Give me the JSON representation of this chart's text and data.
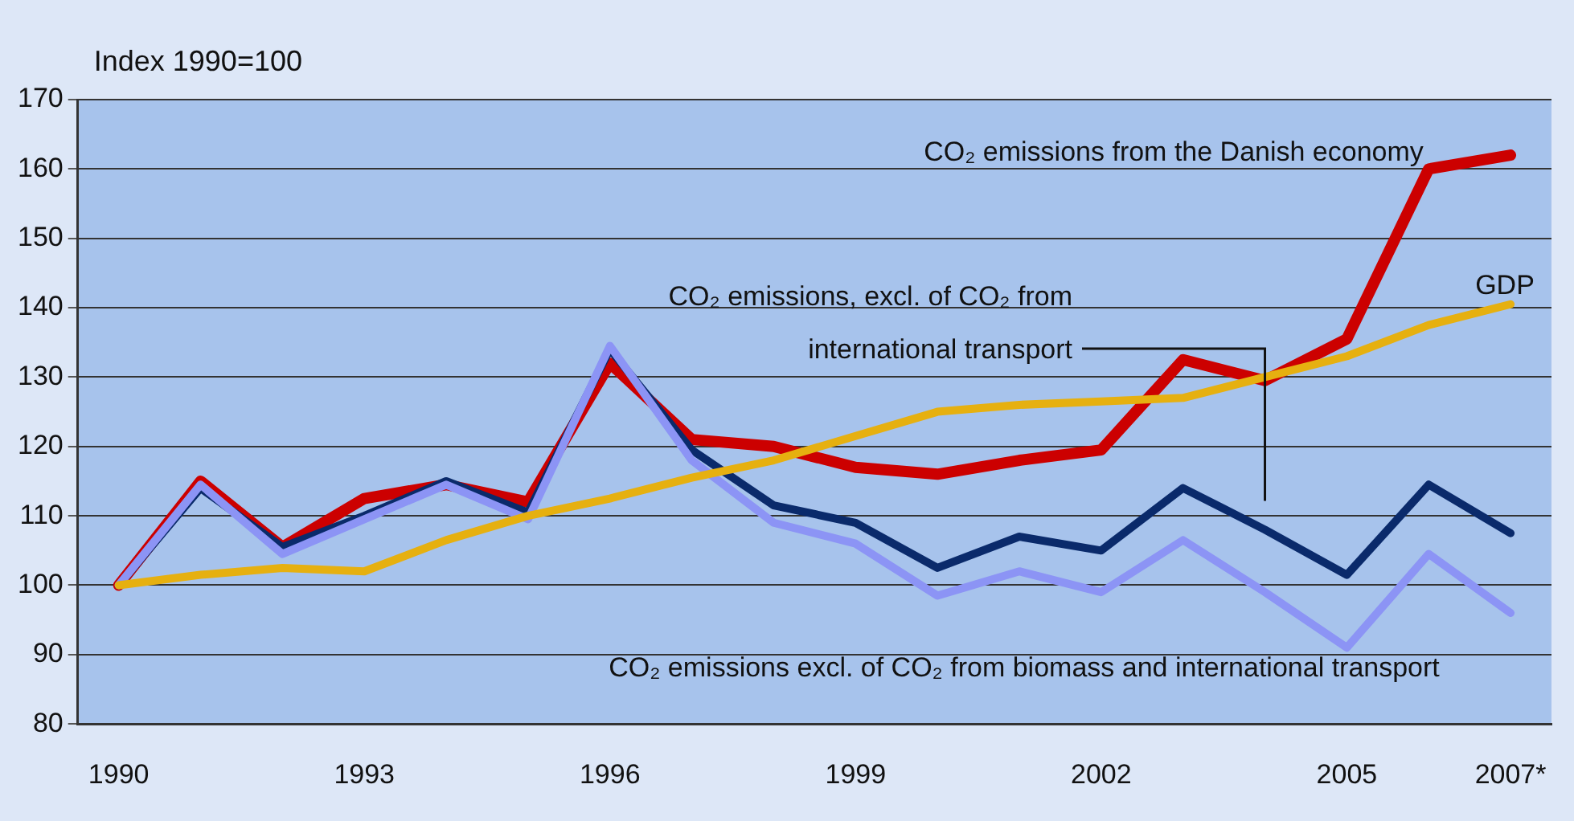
{
  "chart_data": {
    "type": "line",
    "ylabel": "Index 1990=100",
    "categories": [
      "1990",
      null,
      null,
      "1993",
      null,
      null,
      "1996",
      null,
      null,
      "1999",
      null,
      null,
      "2002",
      null,
      null,
      "2005",
      null,
      "2007*"
    ],
    "series": [
      {
        "name": "CO₂ emissions from the Danish economy",
        "color": "#cc0000",
        "values": [
          100,
          115,
          105.5,
          112.5,
          114.5,
          112,
          132,
          121,
          120,
          117,
          116,
          118,
          119.5,
          132.5,
          129.5,
          135.5,
          160,
          162
        ]
      },
      {
        "name": "GDP",
        "color": "#e6b010",
        "values": [
          100,
          101.5,
          102.5,
          102,
          106.5,
          110,
          112.5,
          115.5,
          118,
          121.5,
          125,
          126,
          126.5,
          127,
          130,
          133,
          137.5,
          140.5
        ]
      },
      {
        "name": "CO₂ emissions, excl. of CO₂ from international transport",
        "color": "#0a2a6b",
        "values": [
          100,
          114,
          105.5,
          110,
          115,
          110.5,
          134,
          119.5,
          111.5,
          109,
          102.5,
          107,
          105,
          114,
          108,
          101.5,
          114.5,
          107.5
        ]
      },
      {
        "name": "CO₂ emissions excl. of CO₂ from biomass and international transport",
        "color": "#8c94f5",
        "values": [
          100,
          114.5,
          104.5,
          109.5,
          114.5,
          109.5,
          134.5,
          118,
          109,
          106,
          98.5,
          102,
          99,
          106.5,
          99,
          91,
          104.5,
          96
        ]
      }
    ],
    "ylim": [
      80,
      170
    ],
    "yticks": [
      80,
      90,
      100,
      110,
      120,
      130,
      140,
      150,
      160,
      170
    ],
    "grid": "y",
    "legend": false,
    "marker": "none",
    "line_style": "solid"
  }
}
